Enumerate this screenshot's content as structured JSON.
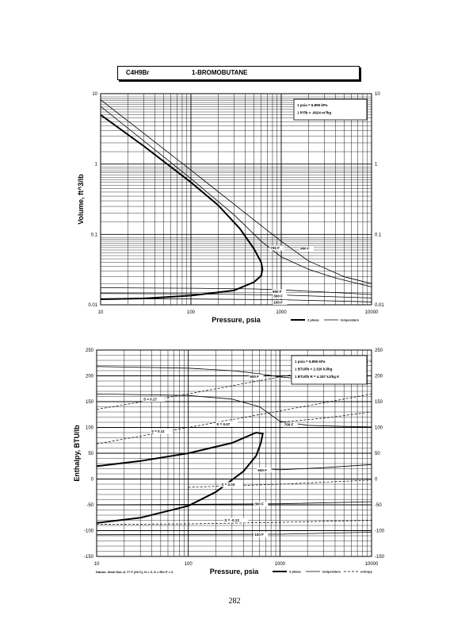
{
  "header": {
    "formula": "C4H9Br",
    "name": "1-BROMOBUTANE"
  },
  "page_number": "282",
  "chart_data": [
    {
      "type": "line",
      "title": "",
      "xlabel": "Pressure,  psia",
      "ylabel": "Volume,  ft^3/lb",
      "xscale": "log",
      "yscale": "log",
      "xlim": [
        10,
        10000
      ],
      "ylim": [
        0.01,
        10
      ],
      "grid": true,
      "x_ticks": [
        10,
        100,
        1000,
        10000
      ],
      "x_tick_labels": [
        "10",
        "100",
        "1000",
        "10000"
      ],
      "y_ticks": [
        0.01,
        0.1,
        1,
        10
      ],
      "y_tick_labels": [
        "0.01",
        "0.1",
        "1",
        "10"
      ],
      "notes": [
        "1 psia  =  6.895 kPa",
        "1 ft^3/lb  =  .0624 m^3/kg"
      ],
      "legend": {
        "placement": "bottom-right",
        "entries": [
          "2 phase",
          "temperature"
        ]
      },
      "series": [
        {
          "label": "",
          "style": "2 phase",
          "x": [
            10,
            30,
            100,
            200,
            350,
            500,
            600,
            620,
            600,
            500,
            300,
            100,
            30,
            10
          ],
          "y": [
            5.0,
            1.8,
            0.55,
            0.26,
            0.12,
            0.062,
            0.04,
            0.032,
            0.026,
            0.021,
            0.016,
            0.0135,
            0.0123,
            0.012
          ]
        },
        {
          "label": "100 F",
          "style": "temperature",
          "x": [
            10,
            100,
            1000,
            10000
          ],
          "y": [
            0.0122,
            0.0121,
            0.0118,
            0.011
          ]
        },
        {
          "label": "300 F",
          "style": "temperature",
          "x": [
            10,
            100,
            1000,
            10000
          ],
          "y": [
            0.0145,
            0.0143,
            0.0138,
            0.0125
          ]
        },
        {
          "label": "500 F",
          "style": "temperature",
          "x": [
            10,
            100,
            500,
            1000,
            3000,
            10000
          ],
          "y": [
            0.0175,
            0.0172,
            0.0168,
            0.0163,
            0.0152,
            0.014
          ]
        },
        {
          "label": "700 F",
          "style": "temperature",
          "x": [
            10,
            100,
            300,
            600,
            1000,
            2000,
            4000,
            10000
          ],
          "y": [
            6.6,
            0.62,
            0.19,
            0.08,
            0.048,
            0.032,
            0.024,
            0.018
          ]
        },
        {
          "label": "900 F",
          "style": "temperature",
          "x": [
            10,
            100,
            500,
            1000,
            2000,
            5000,
            10000
          ],
          "y": [
            8.2,
            0.82,
            0.16,
            0.08,
            0.042,
            0.025,
            0.02
          ]
        }
      ]
    },
    {
      "type": "line",
      "title": "",
      "xlabel": "Pressure,  psia",
      "ylabel": "Enthalpy,  BTU/lb",
      "xscale": "log",
      "yscale": "linear",
      "xlim": [
        10,
        10000
      ],
      "ylim": [
        -150,
        250
      ],
      "grid": true,
      "x_ticks": [
        10,
        100,
        1000,
        10000
      ],
      "x_tick_labels": [
        "10",
        "100",
        "1000",
        "10000"
      ],
      "y_ticks": [
        -150,
        -100,
        -50,
        0,
        50,
        100,
        150,
        200,
        250
      ],
      "y_tick_labels": [
        "-150",
        "-100",
        "-50",
        "0",
        "50",
        "100",
        "150",
        "200",
        "250"
      ],
      "notes": [
        "1 psia  =  6.895 kPa",
        "1 BTU/lb  =  2.326 kJ/kg",
        "1 BTU/lb R  =  4.187 kJ/kg K"
      ],
      "footnote": "Datum: Ideal Gas @ 77 F (25 C),  H = 0,  S = Rln P = 0",
      "legend": {
        "placement": "bottom-right",
        "entries": [
          "2 phase",
          "temperature",
          "entropy"
        ]
      },
      "series": [
        {
          "label": "",
          "style": "2 phase",
          "x": [
            10,
            30,
            100,
            300,
            550,
            650,
            620,
            550,
            400,
            200,
            100,
            30,
            10
          ],
          "y": [
            25,
            35,
            50,
            70,
            90,
            88,
            70,
            45,
            15,
            -25,
            -52,
            -75,
            -85
          ]
        },
        {
          "label": "900 F",
          "style": "temperature",
          "x": [
            10,
            100,
            300,
            600,
            1000,
            3000,
            10000
          ],
          "y": [
            218,
            215,
            210,
            204,
            198,
            190,
            185
          ]
        },
        {
          "label": "700 F",
          "style": "temperature",
          "x": [
            10,
            100,
            300,
            600,
            1000,
            2000,
            5000,
            10000
          ],
          "y": [
            165,
            162,
            155,
            140,
            112,
            104,
            102,
            101
          ]
        },
        {
          "label": "500 F",
          "style": "temperature",
          "x": [
            700,
            1000,
            3000,
            10000
          ],
          "y": [
            20,
            18,
            22,
            28
          ]
        },
        {
          "label": "300 F",
          "style": "temperature",
          "x": [
            10,
            1000,
            10000
          ],
          "y": [
            -50,
            -48,
            -44
          ]
        },
        {
          "label": "100 F",
          "style": "temperature",
          "x": [
            10,
            1000,
            10000
          ],
          "y": [
            -108,
            -107,
            -103
          ]
        },
        {
          "label": "S = 0.17",
          "style": "entropy",
          "x": [
            10,
            100,
            1000,
            10000
          ],
          "y": [
            135,
            165,
            198,
            228
          ]
        },
        {
          "label": "S = 0.11",
          "style": "entropy",
          "x": [
            10,
            100,
            1000,
            10000
          ],
          "y": [
            68,
            100,
            132,
            165
          ]
        },
        {
          "label": "S = 0.07",
          "style": "entropy",
          "x": [
            1000,
            3000,
            10000
          ],
          "y": [
            110,
            118,
            130
          ]
        },
        {
          "label": "S = 0.03",
          "style": "entropy",
          "x": [
            100,
            1000,
            10000
          ],
          "y": [
            -16,
            -10,
            -2
          ]
        },
        {
          "label": "S = -0.13",
          "style": "entropy",
          "x": [
            10,
            100,
            1000,
            10000
          ],
          "y": [
            -88,
            -87,
            -84,
            -80
          ]
        }
      ]
    }
  ]
}
